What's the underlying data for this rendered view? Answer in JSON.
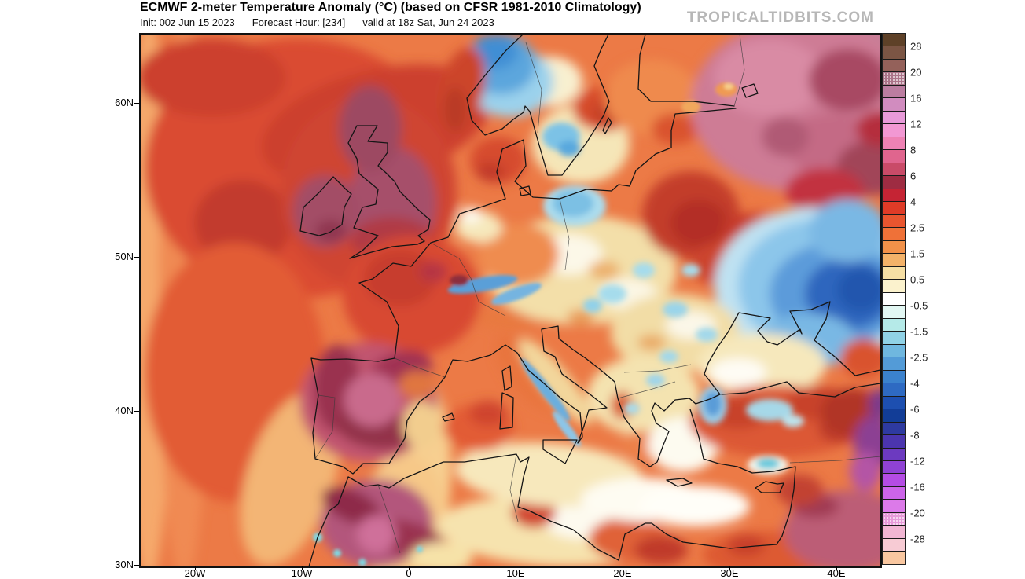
{
  "header": {
    "title": "ECMWF 2-meter Temperature Anomaly (°C) (based on CFSR 1981-2010 Climatology)",
    "init": "Init: 00z Jun 15 2023",
    "forecast_hour": "Forecast Hour: [234]",
    "valid": "valid at 18z Sat, Jun 24 2023",
    "watermark": "TROPICALTIDBITS.COM"
  },
  "map": {
    "lat_ticks": [
      "60N",
      "50N",
      "40N",
      "30N"
    ],
    "lon_ticks": [
      "20W",
      "10W",
      "0",
      "10E",
      "20E",
      "30E",
      "40E"
    ]
  },
  "colorbar": {
    "units": "°C",
    "tick_labels": [
      "28",
      "20",
      "16",
      "12",
      "8",
      "6",
      "4",
      "2.5",
      "1.5",
      "0.5",
      "-0.5",
      "-1.5",
      "-2.5",
      "-4",
      "-6",
      "-8",
      "-12",
      "-16",
      "-20",
      "-28"
    ],
    "segments": [
      {
        "color": "#5e4128"
      },
      {
        "color": "#7b5544"
      },
      {
        "color": "#94615a"
      },
      {
        "color": "#ab7489",
        "stipple": true
      },
      {
        "color": "#bb7da0"
      },
      {
        "color": "#d18cbf"
      },
      {
        "color": "#e89ad9"
      },
      {
        "color": "#f298d3"
      },
      {
        "color": "#ee82b4"
      },
      {
        "color": "#e0658e"
      },
      {
        "color": "#c94b68"
      },
      {
        "color": "#9e2c42"
      },
      {
        "color": "#c52434"
      },
      {
        "color": "#df3b27"
      },
      {
        "color": "#e8552f"
      },
      {
        "color": "#ef7138"
      },
      {
        "color": "#f29149"
      },
      {
        "color": "#f3b269"
      },
      {
        "color": "#f6dfa4"
      },
      {
        "color": "#fbf2cd"
      },
      {
        "color": "#ffffff"
      },
      {
        "color": "#e2f7f3"
      },
      {
        "color": "#b5eae8"
      },
      {
        "color": "#90d2e6"
      },
      {
        "color": "#6fb7df"
      },
      {
        "color": "#539bd7"
      },
      {
        "color": "#3b82cd"
      },
      {
        "color": "#2e6ac2"
      },
      {
        "color": "#1d4fb0"
      },
      {
        "color": "#123d97"
      },
      {
        "color": "#2e3aa0"
      },
      {
        "color": "#4b35ae"
      },
      {
        "color": "#6c3ac0"
      },
      {
        "color": "#8f42d4"
      },
      {
        "color": "#b44ce4"
      },
      {
        "color": "#cc64e9"
      },
      {
        "color": "#dc7ae9"
      },
      {
        "color": "#e79ad9",
        "stipple": true
      },
      {
        "color": "#f1b6d3"
      },
      {
        "color": "#f7cbd4"
      },
      {
        "color": "#f9c7a0"
      }
    ]
  },
  "chart_data": {
    "type": "heatmap",
    "title": "ECMWF 2-meter Temperature Anomaly (°C)",
    "units": "°C",
    "extent": {
      "lon_deg": [
        -25,
        44
      ],
      "lat_deg": [
        30,
        64.5
      ]
    },
    "legend_position": "right",
    "features": [
      {
        "area": "Iberian Peninsula interior",
        "anomaly_c": "+10 to +16"
      },
      {
        "area": "Morocco / Atlas Mountains",
        "anomaly_c": "+10 to +16"
      },
      {
        "area": "United Kingdom and Ireland",
        "anomaly_c": "+8 to +12"
      },
      {
        "area": "France",
        "anomaly_c": "+4 to +8"
      },
      {
        "area": "NE Atlantic Ocean",
        "anomaly_c": "+2 to +6"
      },
      {
        "area": "Finland / NW Russia",
        "anomaly_c": "+8 to +16"
      },
      {
        "area": "Baltic states / Belarus",
        "anomaly_c": "+4 to +6"
      },
      {
        "area": "S Norway / S Sweden mountains",
        "anomaly_c": "-1 to -3"
      },
      {
        "area": "E Ukraine / SW Russia",
        "anomaly_c": "-2 to -6"
      },
      {
        "area": "Central Europe and Balkans",
        "anomaly_c": "-1 to +1"
      },
      {
        "area": "Turkey",
        "anomaly_c": "+2 to +6, locally -1 to -3"
      },
      {
        "area": "E Mediterranean and Black Sea",
        "anomaly_c": "0 to +1"
      }
    ]
  }
}
